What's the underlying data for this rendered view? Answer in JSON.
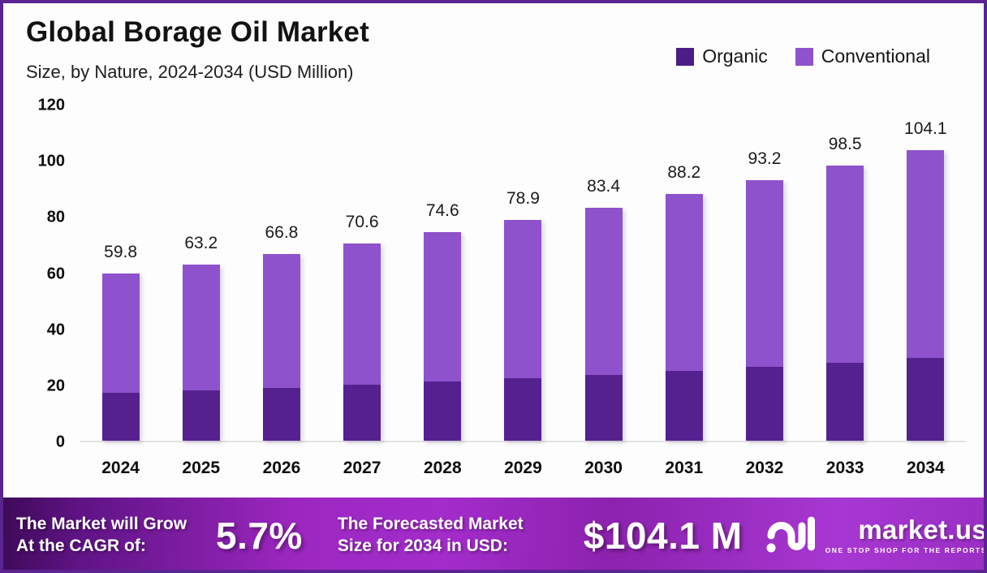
{
  "page": {
    "border_color": "#5B2491",
    "background_color": "#FDFDFD"
  },
  "header": {
    "title": "Global Borage Oil Market",
    "subtitle": "Size, by Nature, 2024-2034 (USD Million)"
  },
  "legend": [
    {
      "label": "Organic",
      "color": "#4A1D87"
    },
    {
      "label": "Conventional",
      "color": "#8E52CC"
    }
  ],
  "chart_data": {
    "type": "bar",
    "stacked": true,
    "title": "Global Borage Oil Market",
    "subtitle": "Size, by Nature, 2024-2034 (USD Million)",
    "xlabel": "",
    "ylabel": "USD Million",
    "ylim": [
      0,
      120
    ],
    "yticks": [
      0,
      20,
      40,
      60,
      80,
      100,
      120
    ],
    "grid": false,
    "legend_position": "top-right",
    "categories": [
      "2024",
      "2025",
      "2026",
      "2027",
      "2028",
      "2029",
      "2030",
      "2031",
      "2032",
      "2033",
      "2034"
    ],
    "series": [
      {
        "name": "Organic",
        "color": "#54218F",
        "values": [
          17.0,
          18.0,
          18.9,
          20.0,
          21.1,
          22.3,
          23.6,
          24.9,
          26.4,
          27.9,
          29.5
        ]
      },
      {
        "name": "Conventional",
        "color": "#8E52CC",
        "values": [
          42.8,
          45.2,
          47.9,
          50.6,
          53.5,
          56.6,
          59.8,
          63.3,
          66.8,
          70.6,
          74.6
        ]
      }
    ],
    "totals": [
      59.8,
      63.2,
      66.8,
      70.6,
      74.6,
      78.9,
      83.4,
      88.2,
      93.2,
      98.5,
      104.1
    ],
    "total_labels": [
      "59.8",
      "63.2",
      "66.8",
      "70.6",
      "74.6",
      "78.9",
      "83.4",
      "88.2",
      "93.2",
      "98.5",
      "104.1"
    ]
  },
  "footer": {
    "cagr_label_line1": "The Market will Grow",
    "cagr_label_line2": "At the CAGR of:",
    "cagr_value": "5.7%",
    "forecast_label_line1": "The Forecasted Market",
    "forecast_label_line2": "Size for 2034 in USD:",
    "forecast_value": "$104.1 M",
    "brand": {
      "name": "market.us",
      "tagline": "ONE STOP SHOP FOR THE REPORTS"
    }
  }
}
